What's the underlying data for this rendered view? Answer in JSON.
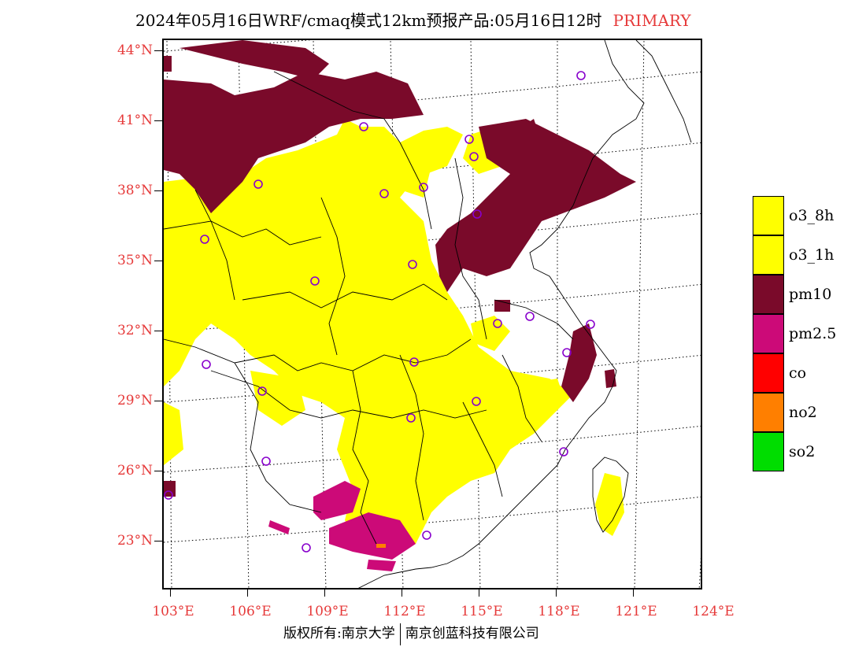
{
  "title": {
    "main": "2024年05月16日WRF/cmaq模式12km预报产品:05月16日12时",
    "tag": "PRIMARY"
  },
  "axes": {
    "lat_labels": [
      "44°N",
      "41°N",
      "38°N",
      "35°N",
      "32°N",
      "29°N",
      "26°N",
      "23°N"
    ],
    "lon_labels": [
      "103°E",
      "106°E",
      "109°E",
      "112°E",
      "115°E",
      "118°E",
      "121°E",
      "124°E"
    ]
  },
  "legend": {
    "items": [
      {
        "label": "o3_8h",
        "color": "#ffff00"
      },
      {
        "label": "o3_1h",
        "color": "#ffff00"
      },
      {
        "label": "pm10",
        "color": "#7a0a2a"
      },
      {
        "label": "pm2.5",
        "color": "#cc0a78"
      },
      {
        "label": "co",
        "color": "#ff0000"
      },
      {
        "label": "no2",
        "color": "#ff7f00"
      },
      {
        "label": "so2",
        "color": "#00dd00"
      }
    ]
  },
  "copyright": {
    "left": "版权所有:南京大学",
    "right": "南京创蓝科技有限公司"
  },
  "colors": {
    "label": "#e63a3a",
    "o3": "#ffff00",
    "pm10": "#7a0a2a",
    "pm25": "#cc0a78",
    "no2": "#ff7f00",
    "station": "#8800cc"
  }
}
